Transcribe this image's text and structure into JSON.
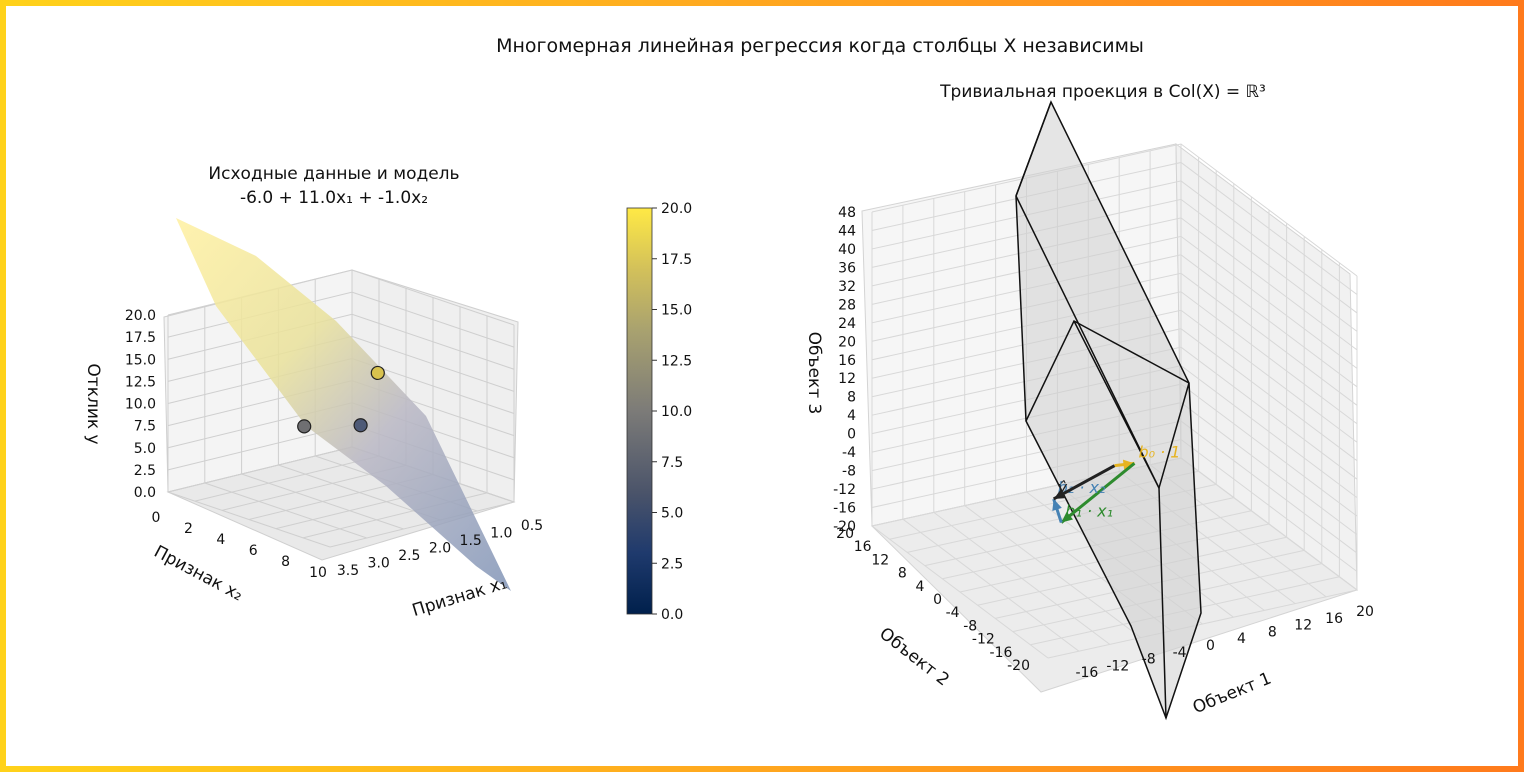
{
  "suptitle": "Многомерная линейная регрессия когда столбцы X независимы",
  "colors": {
    "frame_left": "#ffd21a",
    "frame_right": "#ff7a1c",
    "b1": "#2e8b2e",
    "b2": "#4682b4",
    "b0": "#e6b422",
    "yhat": "#222222",
    "plane": "#d9d9d9"
  },
  "chart_data": [
    {
      "type": "scatter3d",
      "title": "Исходные данные и модель",
      "subtitle": "-6.0 + 11.0x₁ + -1.0x₂",
      "xlabel": "Признак x₁",
      "ylabel": "Признак x₂",
      "zlabel": "Отклик y",
      "xlim": [
        0.5,
        3.5
      ],
      "ylim": [
        0,
        10
      ],
      "zlim": [
        0,
        20
      ],
      "x_ticks": [
        "0.5",
        "1.0",
        "1.5",
        "2.0",
        "2.5",
        "3.0",
        "3.5"
      ],
      "y_ticks": [
        "0",
        "2",
        "4",
        "6",
        "8",
        "10"
      ],
      "z_ticks": [
        "0.0",
        "2.5",
        "5.0",
        "7.5",
        "10.0",
        "12.5",
        "15.0",
        "17.5",
        "20.0"
      ],
      "model": {
        "intercept": -6.0,
        "b1": 11.0,
        "b2": -1.0
      },
      "points": [
        {
          "x1": 2.0,
          "x2": 7.0,
          "y": 9.0
        },
        {
          "x1": 2.0,
          "x2": 3.0,
          "y": 13.0
        },
        {
          "x1": 1.0,
          "x2": 1.0,
          "y": 4.0
        }
      ],
      "colorbar": {
        "min": 0,
        "max": 20,
        "ticks": [
          "0.0",
          "2.5",
          "5.0",
          "7.5",
          "10.0",
          "12.5",
          "15.0",
          "17.5",
          "20.0"
        ],
        "colormap": "cividis"
      }
    },
    {
      "type": "vectors3d",
      "title": "Тривиальная проекция в Col(X) = ℝ³",
      "xlabel": "Объект 1",
      "ylabel": "Объект 2",
      "zlabel": "Объект 3",
      "xlim": [
        -20,
        20
      ],
      "ylim": [
        -20,
        20
      ],
      "zlim": [
        -20,
        48
      ],
      "x_ticks": [
        "-16",
        "-12",
        "-8",
        "-4",
        "0",
        "4",
        "8",
        "12",
        "16",
        "20"
      ],
      "y_ticks": [
        "-20",
        "-16",
        "-12",
        "-8",
        "-4",
        "0",
        "4",
        "8",
        "12",
        "16",
        "20"
      ],
      "z_ticks": [
        "-20",
        "-16",
        "-12",
        "-8",
        "-4",
        "0",
        "4",
        "8",
        "12",
        "16",
        "20",
        "24",
        "28",
        "32",
        "36",
        "40",
        "44",
        "48"
      ],
      "vectors": [
        {
          "name": "b₀ · 1",
          "color": "#e6b422",
          "start": [
            0,
            0,
            0
          ],
          "end": [
            -6,
            -6,
            -6
          ]
        },
        {
          "name": "b₁ · x₁",
          "color": "#2e8b2e",
          "start": [
            -6,
            -6,
            -6
          ],
          "end": [
            16,
            16,
            5
          ]
        },
        {
          "name": "b₂ · x₂",
          "color": "#4682b4",
          "start": [
            16,
            16,
            5
          ],
          "end": [
            9,
            13,
            4
          ]
        },
        {
          "name": "ŷ",
          "color": "#222222",
          "start": [
            0,
            0,
            0
          ],
          "end": [
            9,
            13,
            4
          ]
        }
      ]
    }
  ]
}
